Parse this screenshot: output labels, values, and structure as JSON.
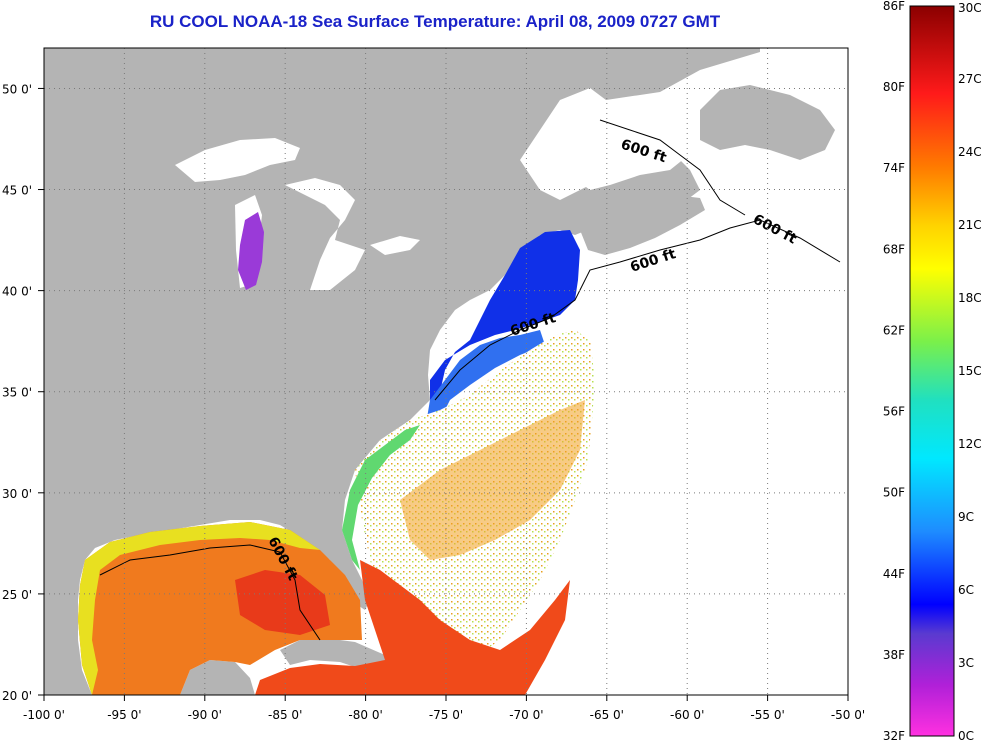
{
  "title": "RU COOL  NOAA-18  Sea Surface Temperature:  April 08, 2009 0727 GMT",
  "map": {
    "lon_range": [
      -100,
      -50
    ],
    "lat_range": [
      20,
      52
    ],
    "lon_ticks": [
      "-100 0'",
      "-95 0'",
      "-90 0'",
      "-85 0'",
      "-80 0'",
      "-75 0'",
      "-70 0'",
      "-65 0'",
      "-60 0'",
      "-55 0'",
      "-50 0'"
    ],
    "lat_ticks": [
      "50 0'",
      "45 0'",
      "40 0'",
      "35 0'",
      "30 0'",
      "25 0'",
      "20 0'"
    ],
    "isobath_label": "600 ft",
    "colors": {
      "land": "#b4b4b4",
      "no_data": "#ffffff",
      "grid": "#808080"
    }
  },
  "colorbar": {
    "f_labels": [
      "86F",
      "80F",
      "74F",
      "68F",
      "62F",
      "56F",
      "50F",
      "44F",
      "38F",
      "32F"
    ],
    "c_labels": [
      "30C",
      "27C",
      "24C",
      "21C",
      "18C",
      "15C",
      "12C",
      "9C",
      "6C",
      "3C",
      "0C"
    ]
  }
}
